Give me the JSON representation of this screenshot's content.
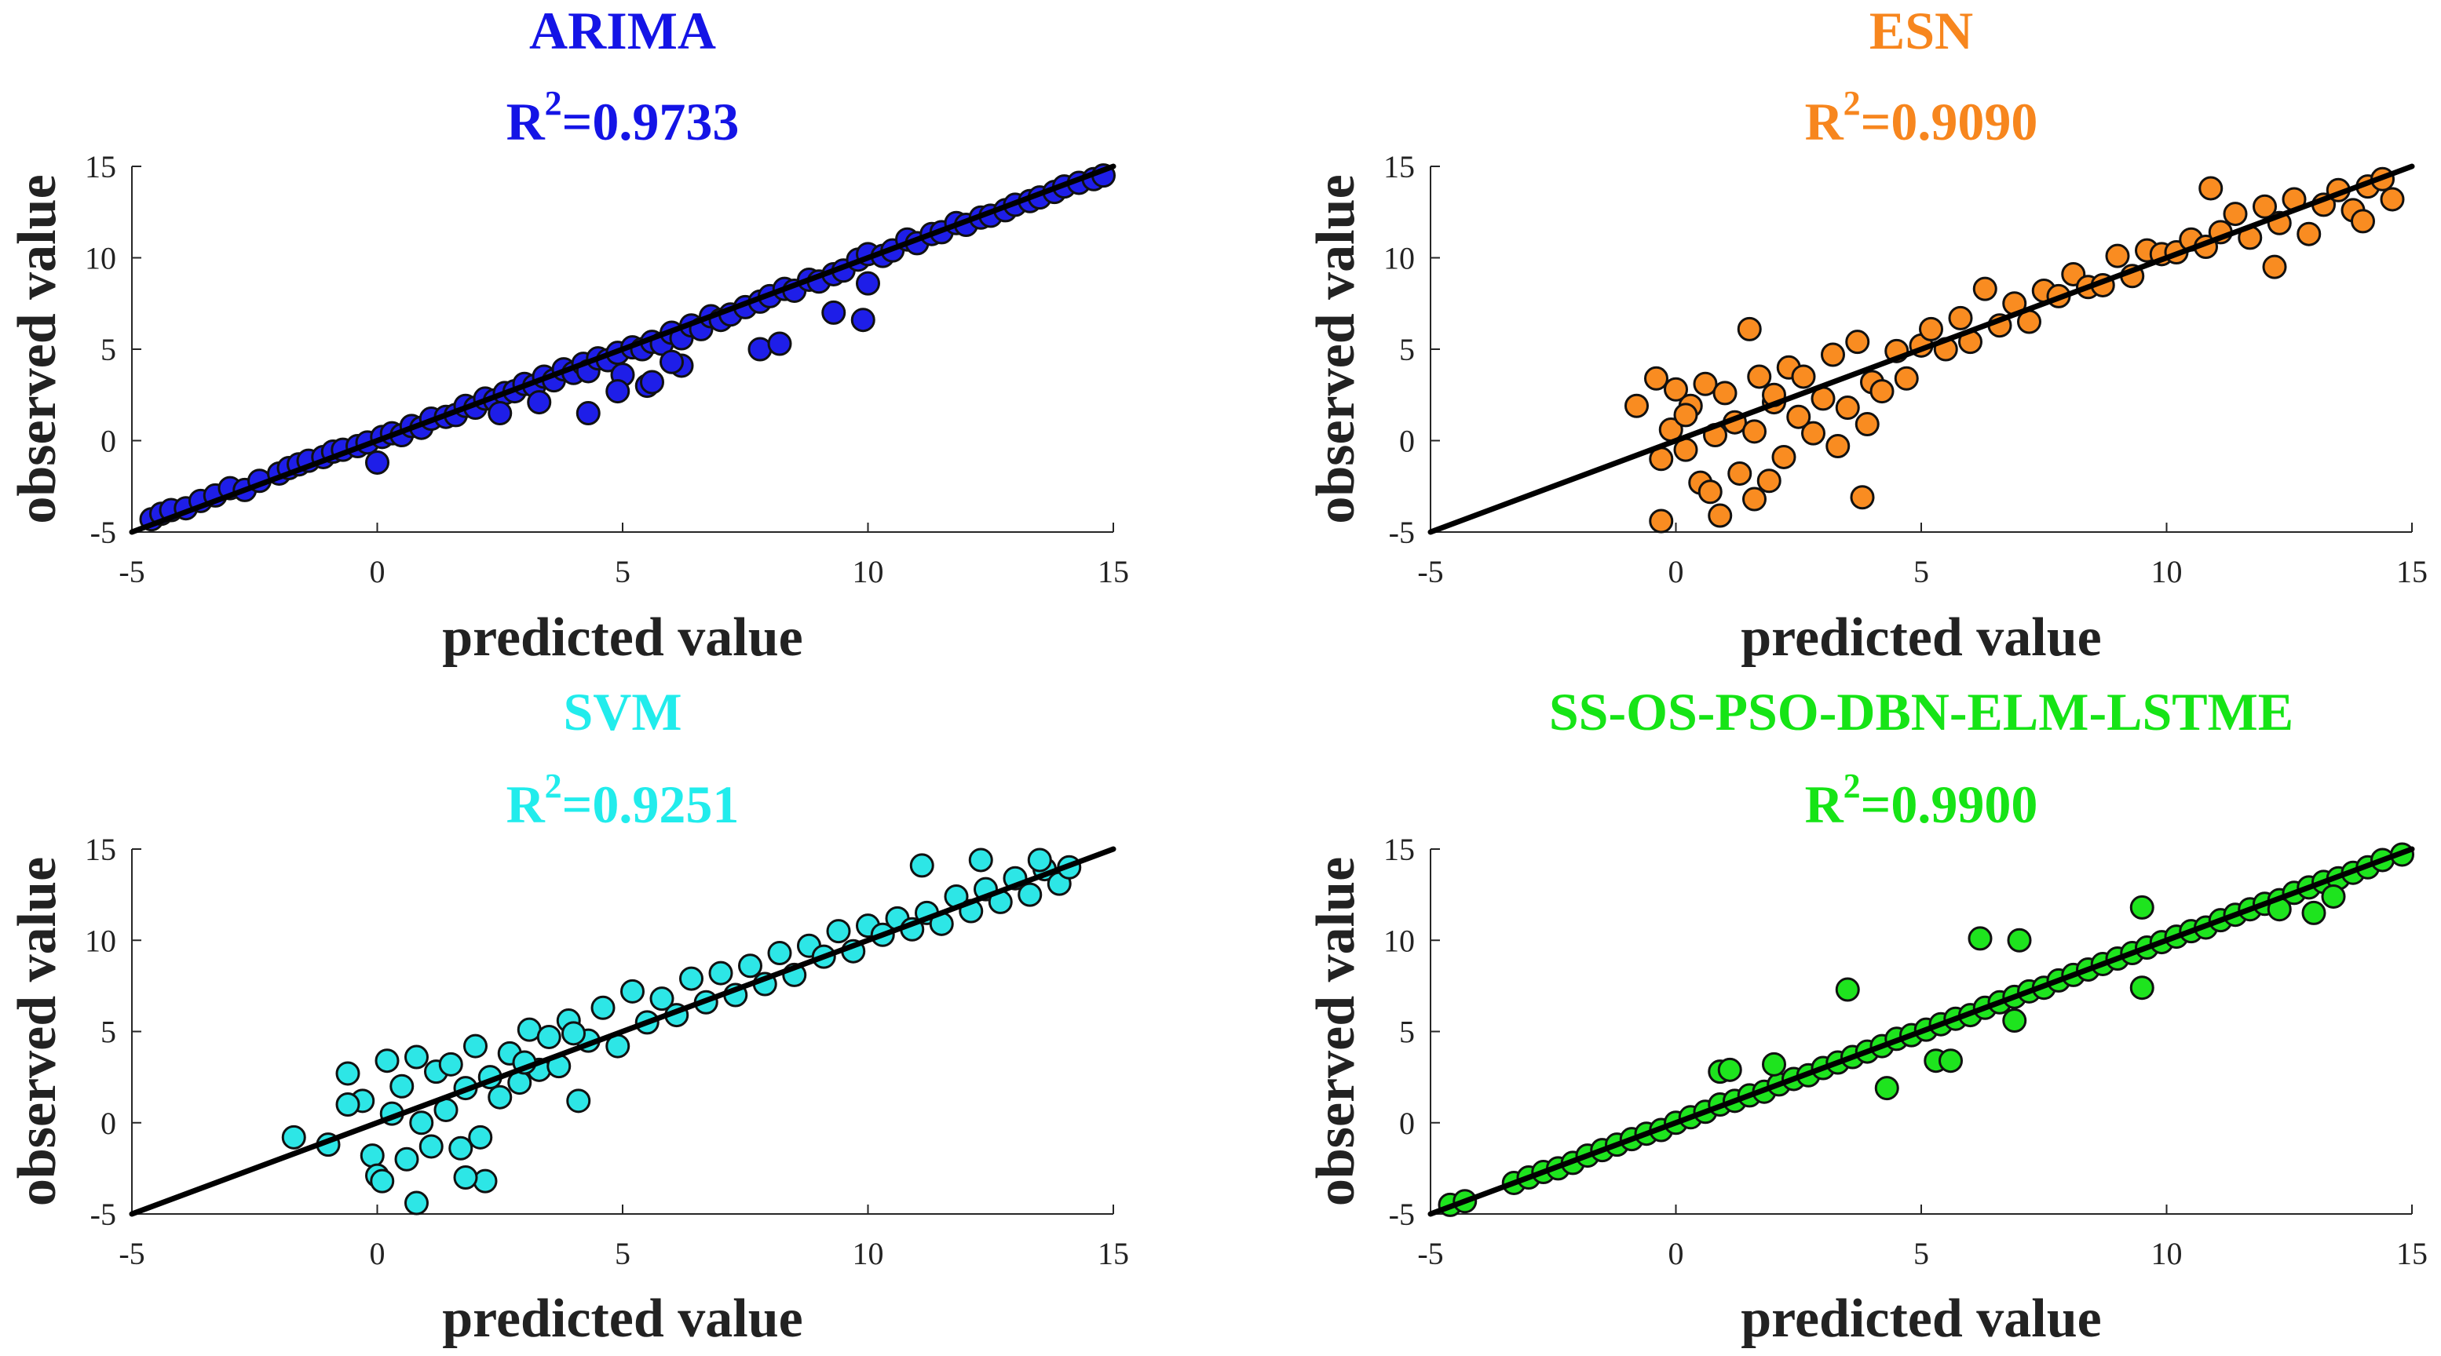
{
  "chart_data": [
    {
      "type": "scatter",
      "title": "ARIMA",
      "r2_label": "R",
      "r2_sup": "2",
      "r2_value": "=0.9733",
      "title_color": "#1414e6",
      "marker_color": "#1e1ee8",
      "xlabel": "predicted value",
      "ylabel": "observed value",
      "xlim": [
        -5,
        15
      ],
      "ylim": [
        -5,
        15
      ],
      "xticks": [
        "-5",
        "0",
        "5",
        "10",
        "15"
      ],
      "yticks": [
        "-5",
        "0",
        "5",
        "10",
        "15"
      ],
      "fit_line": [
        [
          -5,
          -5
        ],
        [
          15,
          15
        ]
      ],
      "x": [
        -4.6,
        -4.4,
        -4.2,
        -3.9,
        -3.6,
        -3.3,
        -3.0,
        -2.7,
        -2.4,
        -2.0,
        -1.8,
        -1.6,
        -1.4,
        -1.1,
        -0.9,
        -0.7,
        -0.4,
        -0.2,
        0.0,
        0.1,
        0.3,
        0.5,
        0.7,
        0.9,
        1.1,
        1.4,
        1.6,
        1.8,
        2.0,
        2.2,
        2.4,
        2.6,
        2.8,
        3.0,
        3.2,
        3.4,
        3.6,
        3.8,
        4.0,
        4.2,
        4.3,
        4.5,
        4.7,
        4.9,
        5.0,
        5.2,
        5.4,
        5.6,
        5.8,
        6.0,
        6.2,
        6.4,
        6.6,
        6.8,
        7.0,
        7.2,
        7.5,
        7.8,
        8.0,
        8.3,
        8.5,
        8.8,
        9.0,
        9.3,
        9.5,
        9.8,
        10.0,
        10.3,
        10.5,
        10.8,
        11.0,
        11.3,
        11.5,
        11.8,
        12.0,
        12.3,
        12.5,
        12.8,
        13.0,
        13.3,
        13.5,
        13.8,
        14.0,
        14.3,
        14.6,
        14.8,
        2.5,
        3.3,
        4.3,
        5.5,
        6.2,
        7.8,
        8.2,
        9.3,
        9.9,
        10.0,
        4.9,
        5.6,
        6.0
      ],
      "y": [
        -4.3,
        -4.0,
        -3.8,
        -3.7,
        -3.3,
        -3.0,
        -2.6,
        -2.7,
        -2.2,
        -1.8,
        -1.5,
        -1.3,
        -1.1,
        -0.9,
        -0.6,
        -0.5,
        -0.3,
        -0.1,
        -1.2,
        0.2,
        0.4,
        0.3,
        0.8,
        0.7,
        1.2,
        1.3,
        1.4,
        1.9,
        1.8,
        2.3,
        2.2,
        2.6,
        2.7,
        3.1,
        3.0,
        3.5,
        3.3,
        3.9,
        3.7,
        4.2,
        3.8,
        4.5,
        4.4,
        4.8,
        3.6,
        5.1,
        5.0,
        5.4,
        5.3,
        5.9,
        5.6,
        6.3,
        6.1,
        6.8,
        6.6,
        6.9,
        7.3,
        7.6,
        7.9,
        8.3,
        8.2,
        8.8,
        8.7,
        9.1,
        9.3,
        9.9,
        10.2,
        10.1,
        10.4,
        11.0,
        10.8,
        11.3,
        11.4,
        11.9,
        11.8,
        12.2,
        12.3,
        12.6,
        12.9,
        13.1,
        13.3,
        13.6,
        13.9,
        14.1,
        14.3,
        14.5,
        1.5,
        2.1,
        1.5,
        3.0,
        4.1,
        5.0,
        5.3,
        7.0,
        6.6,
        8.6,
        2.7,
        3.2,
        4.3
      ]
    },
    {
      "type": "scatter",
      "title": "ESN",
      "r2_label": "R",
      "r2_sup": "2",
      "r2_value": "=0.9090",
      "title_color": "#f7861e",
      "marker_color": "#f98c21",
      "xlabel": "predicted value",
      "ylabel": "observed value",
      "xlim": [
        -5,
        15
      ],
      "ylim": [
        -5,
        15
      ],
      "xticks": [
        "-5",
        "0",
        "5",
        "10",
        "15"
      ],
      "yticks": [
        "-5",
        "0",
        "5",
        "10",
        "15"
      ],
      "fit_line": [
        [
          -5,
          -5
        ],
        [
          15,
          15
        ]
      ],
      "x": [
        -0.8,
        -0.4,
        -0.3,
        -0.1,
        0.0,
        0.2,
        0.3,
        0.5,
        0.6,
        0.8,
        0.9,
        1.0,
        1.2,
        1.3,
        1.5,
        1.6,
        1.7,
        1.9,
        2.0,
        2.2,
        2.3,
        2.5,
        2.6,
        2.8,
        3.0,
        3.2,
        3.3,
        3.5,
        3.7,
        3.9,
        4.0,
        4.2,
        4.5,
        4.7,
        5.0,
        5.2,
        5.5,
        5.8,
        6.0,
        6.3,
        6.6,
        6.9,
        7.2,
        7.5,
        7.8,
        8.1,
        8.4,
        8.7,
        9.0,
        9.3,
        9.6,
        9.9,
        10.2,
        10.5,
        10.8,
        11.1,
        11.4,
        11.7,
        12.0,
        12.3,
        12.6,
        12.9,
        13.2,
        13.5,
        13.8,
        14.1,
        14.4,
        14.6,
        -0.3,
        0.7,
        1.6,
        3.8,
        10.9,
        12.2,
        14.0,
        2.0,
        0.2
      ],
      "y": [
        1.9,
        3.4,
        -4.4,
        0.6,
        2.8,
        -0.5,
        1.9,
        -2.3,
        3.1,
        0.3,
        -4.1,
        2.6,
        1.0,
        -1.8,
        6.1,
        0.5,
        3.5,
        -2.2,
        2.1,
        -0.9,
        4.0,
        1.3,
        3.5,
        0.4,
        2.3,
        4.7,
        -0.3,
        1.8,
        5.4,
        0.9,
        3.2,
        2.7,
        4.9,
        3.4,
        5.2,
        6.1,
        5.0,
        6.7,
        5.4,
        8.3,
        6.3,
        7.5,
        6.5,
        8.2,
        7.9,
        9.1,
        8.4,
        8.5,
        10.1,
        9.0,
        10.4,
        10.2,
        10.3,
        11.0,
        10.6,
        11.4,
        12.4,
        11.1,
        12.8,
        11.9,
        13.2,
        11.3,
        12.9,
        13.7,
        12.6,
        13.9,
        14.3,
        13.2,
        -1.0,
        -2.8,
        -3.2,
        -3.1,
        13.8,
        9.5,
        12.0,
        2.5,
        1.4
      ]
    },
    {
      "type": "scatter",
      "title": "SVM",
      "r2_label": "R",
      "r2_sup": "2",
      "r2_value": "=0.9251",
      "title_color": "#21ecec",
      "marker_color": "#2de6e6",
      "xlabel": "predicted value",
      "ylabel": "observed value",
      "xlim": [
        -5,
        15
      ],
      "ylim": [
        -5,
        15
      ],
      "xticks": [
        "-5",
        "0",
        "5",
        "10",
        "15"
      ],
      "yticks": [
        "-5",
        "0",
        "5",
        "10",
        "15"
      ],
      "fit_line": [
        [
          -5,
          -5
        ],
        [
          15,
          15
        ]
      ],
      "x": [
        -1.7,
        -1.0,
        -0.6,
        -0.3,
        -0.1,
        0.0,
        0.2,
        0.3,
        0.5,
        0.6,
        0.8,
        0.9,
        1.1,
        1.2,
        1.4,
        1.5,
        1.7,
        1.8,
        2.0,
        2.1,
        2.3,
        2.5,
        2.7,
        2.9,
        3.1,
        3.3,
        3.5,
        3.7,
        3.9,
        4.1,
        4.3,
        4.6,
        4.9,
        5.2,
        5.5,
        5.8,
        6.1,
        6.4,
        6.7,
        7.0,
        7.3,
        7.6,
        7.9,
        8.2,
        8.5,
        8.8,
        9.1,
        9.4,
        9.7,
        10.0,
        10.3,
        10.6,
        10.9,
        11.2,
        11.5,
        11.8,
        12.1,
        12.4,
        12.7,
        13.0,
        13.3,
        13.6,
        13.9,
        14.1,
        0.8,
        2.2,
        1.8,
        0.1,
        3.0,
        4.0,
        11.1,
        12.3,
        13.5,
        -0.6
      ],
      "y": [
        -0.8,
        -1.2,
        2.7,
        1.2,
        -1.8,
        -2.9,
        3.4,
        0.5,
        2.0,
        -2.0,
        3.6,
        0.0,
        -1.3,
        2.8,
        0.7,
        3.2,
        -1.4,
        1.9,
        4.2,
        -0.8,
        2.5,
        1.4,
        3.8,
        2.2,
        5.1,
        2.9,
        4.7,
        3.1,
        5.6,
        1.2,
        4.5,
        6.3,
        4.2,
        7.2,
        5.5,
        6.8,
        5.9,
        7.9,
        6.6,
        8.2,
        7.0,
        8.6,
        7.6,
        9.3,
        8.1,
        9.7,
        9.1,
        10.5,
        9.4,
        10.8,
        10.3,
        11.2,
        10.6,
        11.5,
        10.9,
        12.4,
        11.6,
        12.8,
        12.1,
        13.4,
        12.5,
        13.9,
        13.1,
        14.0,
        -4.4,
        -3.2,
        -3.0,
        -3.2,
        3.3,
        4.9,
        14.1,
        14.4,
        14.4,
        1.0
      ]
    },
    {
      "type": "scatter",
      "title": "SS-OS-PSO-DBN-ELM-LSTME",
      "r2_label": "R",
      "r2_sup": "2",
      "r2_value": "=0.9900",
      "title_color": "#16e416",
      "marker_color": "#1ee41e",
      "xlabel": "predicted value",
      "ylabel": "observed value",
      "xlim": [
        -5,
        15
      ],
      "ylim": [
        -5,
        15
      ],
      "xticks": [
        "-5",
        "0",
        "5",
        "10",
        "15"
      ],
      "yticks": [
        "-5",
        "0",
        "5",
        "10",
        "15"
      ],
      "fit_line": [
        [
          -5,
          -5
        ],
        [
          15,
          15
        ]
      ],
      "x": [
        -4.6,
        -4.3,
        -3.3,
        -3.0,
        -2.7,
        -2.4,
        -2.1,
        -1.8,
        -1.5,
        -1.2,
        -0.9,
        -0.6,
        -0.3,
        0.0,
        0.3,
        0.6,
        0.9,
        1.2,
        1.5,
        1.8,
        2.1,
        2.4,
        2.7,
        3.0,
        3.3,
        3.6,
        3.9,
        4.2,
        4.5,
        4.8,
        5.1,
        5.4,
        5.7,
        6.0,
        6.3,
        6.6,
        6.9,
        7.2,
        7.5,
        7.8,
        8.1,
        8.4,
        8.7,
        9.0,
        9.3,
        9.6,
        9.9,
        10.2,
        10.5,
        10.8,
        11.1,
        11.4,
        11.7,
        12.0,
        12.3,
        12.6,
        12.9,
        13.2,
        13.5,
        13.8,
        14.1,
        14.4,
        14.8,
        3.5,
        6.2,
        7.0,
        9.5,
        0.9,
        1.1,
        2.0,
        4.3,
        5.3,
        5.6,
        6.9,
        9.5,
        12.3,
        13.0,
        13.4
      ],
      "y": [
        -4.5,
        -4.3,
        -3.3,
        -3.0,
        -2.7,
        -2.5,
        -2.2,
        -1.8,
        -1.5,
        -1.2,
        -0.9,
        -0.6,
        -0.4,
        0.0,
        0.3,
        0.6,
        1.0,
        1.2,
        1.5,
        1.7,
        2.1,
        2.4,
        2.6,
        3.0,
        3.3,
        3.6,
        3.9,
        4.2,
        4.6,
        4.8,
        5.1,
        5.4,
        5.7,
        5.9,
        6.3,
        6.6,
        6.9,
        7.2,
        7.4,
        7.8,
        8.1,
        8.4,
        8.7,
        9.0,
        9.3,
        9.6,
        9.9,
        10.2,
        10.5,
        10.7,
        11.1,
        11.4,
        11.7,
        12.0,
        12.2,
        12.6,
        12.9,
        13.2,
        13.4,
        13.7,
        14.0,
        14.4,
        14.7,
        7.3,
        10.1,
        10.0,
        11.8,
        2.8,
        2.9,
        3.2,
        1.9,
        3.4,
        3.4,
        5.6,
        7.4,
        11.7,
        11.5,
        12.4
      ]
    }
  ]
}
